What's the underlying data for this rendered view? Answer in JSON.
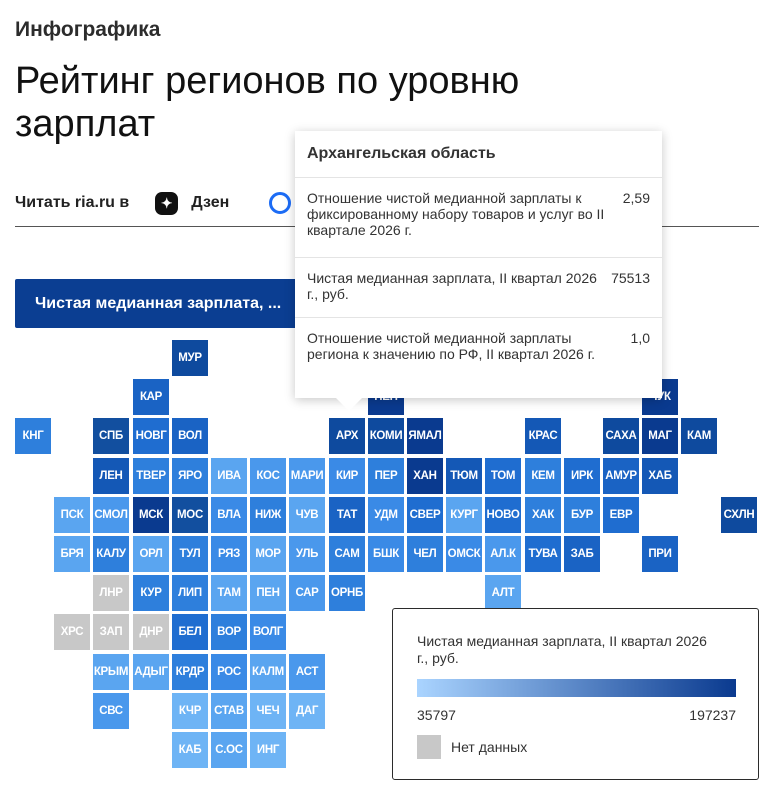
{
  "kicker": "Инфографика",
  "title": "Рейтинг регионов по уровню зарплат",
  "read": {
    "label": "Читать ria.ru в",
    "dzen_label": "Дзен",
    "dzen_icon": "dzen-star-icon",
    "max_icon": "max-messenger-icon"
  },
  "metric_button": {
    "label": "Чистая медианная зарплата, ..."
  },
  "colors": {
    "no_data": "#c8c8c8",
    "legend_low": "#aad4ff",
    "legend_high": "#0a3a8f",
    "button": "#0b3e92"
  },
  "tooltip": {
    "region": "Архангельская область",
    "rows": [
      {
        "label": "Отношение чистой медианной зарплаты к фиксированному набору товаров и услуг во II квартале 2026 г.",
        "value": "2,59"
      },
      {
        "label": "Чистая медианная зарплата, II квартал 2026 г., руб.",
        "value": "75513"
      },
      {
        "label": "Отношение чистой медианной зарплаты региона к значению по РФ, II квартал 2026 г.",
        "value": "1,0"
      }
    ]
  },
  "legend": {
    "title": "Чистая медианная зарплата, II квартал 2026 г., руб.",
    "min": "35797",
    "max": "197237",
    "no_data": "Нет данных"
  },
  "regions": [
    {
      "abbr": "МУР",
      "col": 4,
      "row": 0,
      "color": "#0e4a9e"
    },
    {
      "abbr": "КАР",
      "col": 3,
      "row": 1,
      "color": "#1a63c4"
    },
    {
      "abbr": "НЕН",
      "col": 9,
      "row": 1,
      "color": "#0a3a8f"
    },
    {
      "abbr": "ЧУК",
      "col": 16,
      "row": 1,
      "color": "#0a3a8f"
    },
    {
      "abbr": "КНГ",
      "col": 0,
      "row": 2,
      "color": "#2e7fdc"
    },
    {
      "abbr": "СПБ",
      "col": 2,
      "row": 2,
      "color": "#124f9f"
    },
    {
      "abbr": "НОВГ",
      "col": 3,
      "row": 2,
      "color": "#1f6dd0"
    },
    {
      "abbr": "ВОЛ",
      "col": 4,
      "row": 2,
      "color": "#1a63c4"
    },
    {
      "abbr": "АРХ",
      "col": 8,
      "row": 2,
      "color": "#0e4a9e"
    },
    {
      "abbr": "КОМИ",
      "col": 9,
      "row": 2,
      "color": "#0e4a9e"
    },
    {
      "abbr": "ЯМАЛ",
      "col": 10,
      "row": 2,
      "color": "#0a3a8f"
    },
    {
      "abbr": "КРАС",
      "col": 13,
      "row": 2,
      "color": "#1458b6"
    },
    {
      "abbr": "САХА",
      "col": 15,
      "row": 2,
      "color": "#0e4a9e"
    },
    {
      "abbr": "МАГ",
      "col": 16,
      "row": 2,
      "color": "#0a3a8f"
    },
    {
      "abbr": "КАМ",
      "col": 17,
      "row": 2,
      "color": "#0e4a9e"
    },
    {
      "abbr": "ЛЕН",
      "col": 2,
      "row": 3,
      "color": "#1458b6"
    },
    {
      "abbr": "ТВЕР",
      "col": 3,
      "row": 3,
      "color": "#2e7fdc"
    },
    {
      "abbr": "ЯРО",
      "col": 4,
      "row": 3,
      "color": "#2e7fdc"
    },
    {
      "abbr": "ИВА",
      "col": 5,
      "row": 3,
      "color": "#5aa5f0"
    },
    {
      "abbr": "КОС",
      "col": 6,
      "row": 3,
      "color": "#4a98ec"
    },
    {
      "abbr": "МАРИ",
      "col": 7,
      "row": 3,
      "color": "#4a98ec"
    },
    {
      "abbr": "КИР",
      "col": 8,
      "row": 3,
      "color": "#3a8ae6"
    },
    {
      "abbr": "ПЕР",
      "col": 9,
      "row": 3,
      "color": "#2e7fdc"
    },
    {
      "abbr": "ХАН",
      "col": 10,
      "row": 3,
      "color": "#0a3a8f"
    },
    {
      "abbr": "ТЮМ",
      "col": 11,
      "row": 3,
      "color": "#1458b6"
    },
    {
      "abbr": "ТОМ",
      "col": 12,
      "row": 3,
      "color": "#1f6dd0"
    },
    {
      "abbr": "КЕМ",
      "col": 13,
      "row": 3,
      "color": "#2e7fdc"
    },
    {
      "abbr": "ИРК",
      "col": 14,
      "row": 3,
      "color": "#1f6dd0"
    },
    {
      "abbr": "АМУР",
      "col": 15,
      "row": 3,
      "color": "#1a63c4"
    },
    {
      "abbr": "ХАБ",
      "col": 16,
      "row": 3,
      "color": "#1458b6"
    },
    {
      "abbr": "ПСК",
      "col": 1,
      "row": 4,
      "color": "#5aa5f0"
    },
    {
      "abbr": "СМОЛ",
      "col": 2,
      "row": 4,
      "color": "#4a98ec"
    },
    {
      "abbr": "МСК",
      "col": 3,
      "row": 4,
      "color": "#0a3a8f"
    },
    {
      "abbr": "МОС",
      "col": 4,
      "row": 4,
      "color": "#124f9f"
    },
    {
      "abbr": "ВЛА",
      "col": 5,
      "row": 4,
      "color": "#3a8ae6"
    },
    {
      "abbr": "НИЖ",
      "col": 6,
      "row": 4,
      "color": "#2e7fdc"
    },
    {
      "abbr": "ЧУВ",
      "col": 7,
      "row": 4,
      "color": "#5aa5f0"
    },
    {
      "abbr": "ТАТ",
      "col": 8,
      "row": 4,
      "color": "#1a63c4"
    },
    {
      "abbr": "УДМ",
      "col": 9,
      "row": 4,
      "color": "#3a8ae6"
    },
    {
      "abbr": "СВЕР",
      "col": 10,
      "row": 4,
      "color": "#1f6dd0"
    },
    {
      "abbr": "КУРГ",
      "col": 11,
      "row": 4,
      "color": "#5aa5f0"
    },
    {
      "abbr": "НОВО",
      "col": 12,
      "row": 4,
      "color": "#1f6dd0"
    },
    {
      "abbr": "ХАК",
      "col": 13,
      "row": 4,
      "color": "#2e7fdc"
    },
    {
      "abbr": "БУР",
      "col": 14,
      "row": 4,
      "color": "#2e7fdc"
    },
    {
      "abbr": "ЕВР",
      "col": 15,
      "row": 4,
      "color": "#1f6dd0"
    },
    {
      "abbr": "СХЛН",
      "col": 18,
      "row": 4,
      "color": "#0e4a9e"
    },
    {
      "abbr": "БРЯ",
      "col": 1,
      "row": 5,
      "color": "#5aa5f0"
    },
    {
      "abbr": "КАЛУ",
      "col": 2,
      "row": 5,
      "color": "#2e7fdc"
    },
    {
      "abbr": "ОРЛ",
      "col": 3,
      "row": 5,
      "color": "#5aa5f0"
    },
    {
      "abbr": "ТУЛ",
      "col": 4,
      "row": 5,
      "color": "#2e7fdc"
    },
    {
      "abbr": "РЯЗ",
      "col": 5,
      "row": 5,
      "color": "#3a8ae6"
    },
    {
      "abbr": "МОР",
      "col": 6,
      "row": 5,
      "color": "#5aa5f0"
    },
    {
      "abbr": "УЛЬ",
      "col": 7,
      "row": 5,
      "color": "#4a98ec"
    },
    {
      "abbr": "САМ",
      "col": 8,
      "row": 5,
      "color": "#2e7fdc"
    },
    {
      "abbr": "БШК",
      "col": 9,
      "row": 5,
      "color": "#3a8ae6"
    },
    {
      "abbr": "ЧЕЛ",
      "col": 10,
      "row": 5,
      "color": "#2e7fdc"
    },
    {
      "abbr": "ОМСК",
      "col": 11,
      "row": 5,
      "color": "#3a8ae6"
    },
    {
      "abbr": "АЛ.К",
      "col": 12,
      "row": 5,
      "color": "#4a98ec"
    },
    {
      "abbr": "ТУВА",
      "col": 13,
      "row": 5,
      "color": "#1f6dd0"
    },
    {
      "abbr": "ЗАБ",
      "col": 14,
      "row": 5,
      "color": "#1a63c4"
    },
    {
      "abbr": "ПРИ",
      "col": 16,
      "row": 5,
      "color": "#1a63c4"
    },
    {
      "abbr": "ЛНР",
      "col": 2,
      "row": 6,
      "color": "#c8c8c8"
    },
    {
      "abbr": "КУР",
      "col": 3,
      "row": 6,
      "color": "#2e7fdc"
    },
    {
      "abbr": "ЛИП",
      "col": 4,
      "row": 6,
      "color": "#2e7fdc"
    },
    {
      "abbr": "ТАМ",
      "col": 5,
      "row": 6,
      "color": "#5aa5f0"
    },
    {
      "abbr": "ПЕН",
      "col": 6,
      "row": 6,
      "color": "#5aa5f0"
    },
    {
      "abbr": "САР",
      "col": 7,
      "row": 6,
      "color": "#4a98ec"
    },
    {
      "abbr": "ОРНБ",
      "col": 8,
      "row": 6,
      "color": "#2e7fdc"
    },
    {
      "abbr": "АЛТ",
      "col": 12,
      "row": 6,
      "color": "#5aa5f0"
    },
    {
      "abbr": "ХРС",
      "col": 1,
      "row": 7,
      "color": "#c8c8c8"
    },
    {
      "abbr": "ЗАП",
      "col": 2,
      "row": 7,
      "color": "#c8c8c8"
    },
    {
      "abbr": "ДНР",
      "col": 3,
      "row": 7,
      "color": "#c8c8c8"
    },
    {
      "abbr": "БЕЛ",
      "col": 4,
      "row": 7,
      "color": "#1f6dd0"
    },
    {
      "abbr": "ВОР",
      "col": 5,
      "row": 7,
      "color": "#2e7fdc"
    },
    {
      "abbr": "ВОЛГ",
      "col": 6,
      "row": 7,
      "color": "#3a8ae6"
    },
    {
      "abbr": "КРЫМ",
      "col": 2,
      "row": 8,
      "color": "#5aa5f0"
    },
    {
      "abbr": "АДЫГ",
      "col": 3,
      "row": 8,
      "color": "#5aa5f0"
    },
    {
      "abbr": "КРДР",
      "col": 4,
      "row": 8,
      "color": "#2e7fdc"
    },
    {
      "abbr": "РОС",
      "col": 5,
      "row": 8,
      "color": "#3a8ae6"
    },
    {
      "abbr": "КАЛМ",
      "col": 6,
      "row": 8,
      "color": "#5aa5f0"
    },
    {
      "abbr": "АСТ",
      "col": 7,
      "row": 8,
      "color": "#4a98ec"
    },
    {
      "abbr": "СВС",
      "col": 2,
      "row": 9,
      "color": "#4a98ec"
    },
    {
      "abbr": "КЧР",
      "col": 4,
      "row": 9,
      "color": "#6eb4f5"
    },
    {
      "abbr": "СТАВ",
      "col": 5,
      "row": 9,
      "color": "#5aa5f0"
    },
    {
      "abbr": "ЧЕЧ",
      "col": 6,
      "row": 9,
      "color": "#6eb4f5"
    },
    {
      "abbr": "ДАГ",
      "col": 7,
      "row": 9,
      "color": "#6eb4f5"
    },
    {
      "abbr": "КАБ",
      "col": 4,
      "row": 10,
      "color": "#6eb4f5"
    },
    {
      "abbr": "С.ОС",
      "col": 5,
      "row": 10,
      "color": "#5aa5f0"
    },
    {
      "abbr": "ИНГ",
      "col": 6,
      "row": 10,
      "color": "#6eb4f5"
    }
  ]
}
